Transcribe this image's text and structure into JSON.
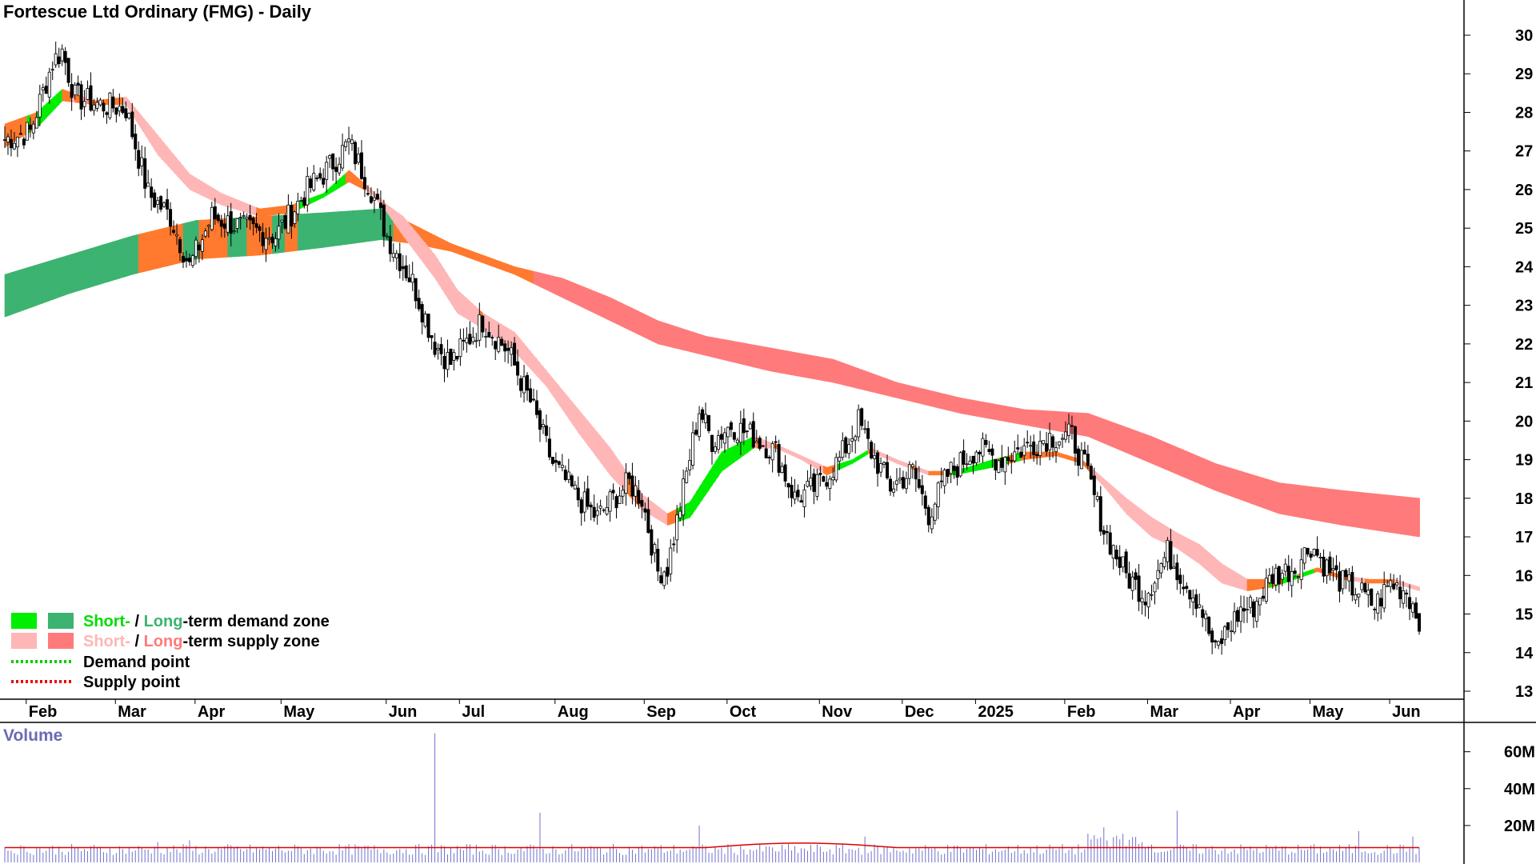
{
  "title": "Fortescue Ltd Ordinary (FMG) - Daily",
  "legend": [
    {
      "parts": [
        {
          "text": "Short-",
          "color": "#00dd00"
        },
        {
          "text": " / ",
          "color": "#000000"
        },
        {
          "text": "Long",
          "color": "#3cb371"
        },
        {
          "text": "-term demand zone",
          "color": "#000000"
        }
      ],
      "swatches": [
        "#00ee00",
        "#3cb371"
      ]
    },
    {
      "parts": [
        {
          "text": "Short-",
          "color": "#ffb6b6"
        },
        {
          "text": " / ",
          "color": "#000000"
        },
        {
          "text": "Long",
          "color": "#ff7a7a"
        },
        {
          "text": "-term supply zone",
          "color": "#000000"
        }
      ],
      "swatches": [
        "#ffb6b6",
        "#ff7a7a"
      ]
    },
    {
      "parts": [
        {
          "text": "Demand point",
          "color": "#000000"
        }
      ],
      "dotted": "#00cc00"
    },
    {
      "parts": [
        {
          "text": "Supply point",
          "color": "#000000"
        }
      ],
      "dotted": "#ee0000"
    }
  ],
  "volume_label": "Volume",
  "colors": {
    "short_demand": "#00ee00",
    "long_demand": "#3cb371",
    "short_supply": "#ffb6b6",
    "long_supply": "#ff7a7a",
    "transition": "#ff7a2e",
    "volume_bar": "#7070cc",
    "volume_avg": "#dd0000",
    "candle": "#000000"
  },
  "chart_data": {
    "type": "candlestick",
    "title": "Fortescue Ltd Ordinary (FMG) - Daily",
    "x_labels": [
      "Feb",
      "Mar",
      "Apr",
      "May",
      "Jun",
      "Jul",
      "Aug",
      "Sep",
      "Oct",
      "Nov",
      "Dec",
      "2025",
      "Feb",
      "Mar",
      "Apr",
      "May",
      "Jun"
    ],
    "y_ticks": [
      13,
      14,
      15,
      16,
      17,
      18,
      19,
      20,
      21,
      22,
      23,
      24,
      25,
      26,
      27,
      28,
      29,
      30
    ],
    "ylim": [
      12.6,
      30.3
    ],
    "close_anchors": [
      [
        0,
        27.3
      ],
      [
        8,
        27.5
      ],
      [
        15,
        29.3
      ],
      [
        18,
        29.6
      ],
      [
        22,
        28.4
      ],
      [
        30,
        28.2
      ],
      [
        38,
        28.1
      ],
      [
        45,
        25.9
      ],
      [
        52,
        25.3
      ],
      [
        58,
        24.0
      ],
      [
        65,
        25.3
      ],
      [
        75,
        25.0
      ],
      [
        85,
        24.8
      ],
      [
        95,
        26.0
      ],
      [
        100,
        26.4
      ],
      [
        108,
        27.2
      ],
      [
        115,
        26.0
      ],
      [
        120,
        24.8
      ],
      [
        128,
        23.6
      ],
      [
        135,
        22.0
      ],
      [
        140,
        21.5
      ],
      [
        150,
        22.6
      ],
      [
        158,
        21.8
      ],
      [
        165,
        20.5
      ],
      [
        172,
        18.9
      ],
      [
        180,
        18.0
      ],
      [
        186,
        17.5
      ],
      [
        190,
        17.9
      ],
      [
        196,
        18.4
      ],
      [
        200,
        18.0
      ],
      [
        205,
        16.1
      ],
      [
        208,
        16.2
      ],
      [
        212,
        17.8
      ],
      [
        218,
        20.3
      ],
      [
        222,
        19.5
      ],
      [
        228,
        19.9
      ],
      [
        235,
        19.6
      ],
      [
        242,
        19.2
      ],
      [
        248,
        18.0
      ],
      [
        255,
        18.3
      ],
      [
        262,
        19.0
      ],
      [
        268,
        20.0
      ],
      [
        272,
        19.2
      ],
      [
        278,
        18.3
      ],
      [
        285,
        18.7
      ],
      [
        290,
        17.6
      ],
      [
        296,
        18.6
      ],
      [
        305,
        19.3
      ],
      [
        312,
        19.0
      ],
      [
        320,
        19.3
      ],
      [
        328,
        19.6
      ],
      [
        335,
        19.6
      ],
      [
        340,
        18.6
      ],
      [
        345,
        17.2
      ],
      [
        352,
        16.0
      ],
      [
        358,
        15.5
      ],
      [
        365,
        16.6
      ],
      [
        370,
        15.9
      ],
      [
        375,
        15.3
      ],
      [
        380,
        14.0
      ],
      [
        383,
        14.5
      ],
      [
        388,
        15.1
      ],
      [
        392,
        15.2
      ],
      [
        398,
        16.0
      ],
      [
        405,
        16.2
      ],
      [
        410,
        16.8
      ],
      [
        415,
        16.2
      ],
      [
        420,
        15.8
      ],
      [
        425,
        15.6
      ],
      [
        430,
        15.2
      ],
      [
        435,
        15.8
      ],
      [
        440,
        15.6
      ],
      [
        444,
        14.9
      ]
    ],
    "short_term_zone_anchors": [
      [
        0,
        27.1,
        27.7
      ],
      [
        10,
        27.6,
        28.0
      ],
      [
        18,
        28.3,
        28.6
      ],
      [
        28,
        28.2,
        28.3
      ],
      [
        38,
        28.2,
        28.4
      ],
      [
        48,
        26.9,
        27.4
      ],
      [
        58,
        26.0,
        26.4
      ],
      [
        68,
        25.6,
        25.9
      ],
      [
        80,
        25.3,
        25.5
      ],
      [
        90,
        25.4,
        25.6
      ],
      [
        100,
        25.8,
        25.9
      ],
      [
        108,
        26.2,
        26.5
      ],
      [
        115,
        25.9,
        26.0
      ],
      [
        120,
        25.4,
        25.6
      ],
      [
        125,
        24.8,
        25.3
      ],
      [
        135,
        23.7,
        24.3
      ],
      [
        142,
        22.8,
        23.4
      ],
      [
        150,
        22.4,
        22.8
      ],
      [
        160,
        21.8,
        22.3
      ],
      [
        170,
        20.9,
        21.3
      ],
      [
        180,
        19.7,
        20.3
      ],
      [
        190,
        18.6,
        19.3
      ],
      [
        200,
        17.7,
        18.1
      ],
      [
        208,
        17.3,
        17.6
      ],
      [
        215,
        17.5,
        17.9
      ],
      [
        225,
        18.7,
        19.2
      ],
      [
        235,
        19.3,
        19.6
      ],
      [
        242,
        19.3,
        19.4
      ],
      [
        250,
        19.0,
        19.1
      ],
      [
        258,
        18.6,
        18.8
      ],
      [
        266,
        18.9,
        19.0
      ],
      [
        272,
        19.2,
        19.3
      ],
      [
        280,
        18.9,
        19.0
      ],
      [
        290,
        18.6,
        18.7
      ],
      [
        298,
        18.6,
        18.7
      ],
      [
        310,
        18.8,
        19.0
      ],
      [
        320,
        19.0,
        19.2
      ],
      [
        330,
        19.1,
        19.2
      ],
      [
        338,
        18.9,
        19.0
      ],
      [
        345,
        18.3,
        18.5
      ],
      [
        352,
        17.6,
        18.0
      ],
      [
        360,
        17.0,
        17.5
      ],
      [
        368,
        16.7,
        17.1
      ],
      [
        375,
        16.3,
        16.8
      ],
      [
        382,
        15.8,
        16.3
      ],
      [
        390,
        15.6,
        15.9
      ],
      [
        398,
        15.7,
        15.9
      ],
      [
        405,
        15.9,
        16.0
      ],
      [
        412,
        16.1,
        16.2
      ],
      [
        420,
        15.9,
        16.0
      ],
      [
        428,
        15.8,
        15.9
      ],
      [
        436,
        15.8,
        15.9
      ],
      [
        444,
        15.6,
        15.7
      ]
    ],
    "long_term_zone_anchors": [
      [
        0,
        22.7,
        23.8
      ],
      [
        20,
        23.3,
        24.3
      ],
      [
        40,
        23.8,
        24.8
      ],
      [
        60,
        24.2,
        25.2
      ],
      [
        80,
        24.3,
        25.3
      ],
      [
        100,
        24.5,
        25.4
      ],
      [
        118,
        24.7,
        25.5
      ],
      [
        128,
        24.6,
        25.1
      ],
      [
        140,
        24.4,
        24.6
      ],
      [
        150,
        24.1,
        24.3
      ],
      [
        160,
        23.8,
        24.0
      ],
      [
        175,
        23.2,
        23.7
      ],
      [
        190,
        22.6,
        23.2
      ],
      [
        205,
        22.0,
        22.6
      ],
      [
        220,
        21.7,
        22.2
      ],
      [
        240,
        21.3,
        21.9
      ],
      [
        260,
        21.0,
        21.6
      ],
      [
        280,
        20.6,
        21.0
      ],
      [
        300,
        20.2,
        20.6
      ],
      [
        320,
        19.9,
        20.3
      ],
      [
        340,
        19.6,
        20.2
      ],
      [
        360,
        18.9,
        19.6
      ],
      [
        380,
        18.2,
        18.9
      ],
      [
        400,
        17.6,
        18.4
      ],
      [
        420,
        17.3,
        18.2
      ],
      [
        444,
        17.0,
        18.0
      ]
    ],
    "volume": {
      "label": "Volume",
      "y_ticks": [
        "20M",
        "40M",
        "60M"
      ],
      "y_tick_values": [
        20,
        40,
        60
      ],
      "ylim_millions": [
        0,
        72
      ],
      "average_millions": 8,
      "spikes": [
        [
          48,
          11
        ],
        [
          58,
          12
        ],
        [
          135,
          70
        ],
        [
          168,
          27
        ],
        [
          218,
          20
        ],
        [
          270,
          14
        ],
        [
          345,
          19
        ],
        [
          368,
          28
        ],
        [
          425,
          17
        ],
        [
          442,
          14
        ]
      ]
    }
  }
}
